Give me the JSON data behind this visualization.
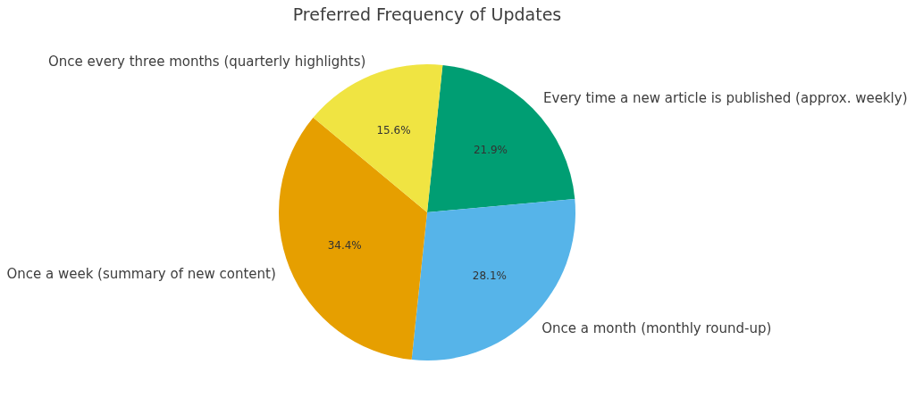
{
  "chart_data": {
    "type": "pie",
    "title": "Preferred Frequency of Updates",
    "categories": [
      "Every time a new article is published (approx. weekly)",
      "Once a month (monthly round-up)",
      "Once a week (summary of new content)",
      "Once every three months (quarterly highlights)"
    ],
    "values": [
      21.9,
      28.1,
      34.4,
      15.6
    ],
    "colors": [
      "#009e73",
      "#56b4e9",
      "#e69f00",
      "#f0e442"
    ],
    "value_labels": [
      "21.9%",
      "28.1%",
      "34.4%",
      "15.6%"
    ],
    "legend": false
  }
}
